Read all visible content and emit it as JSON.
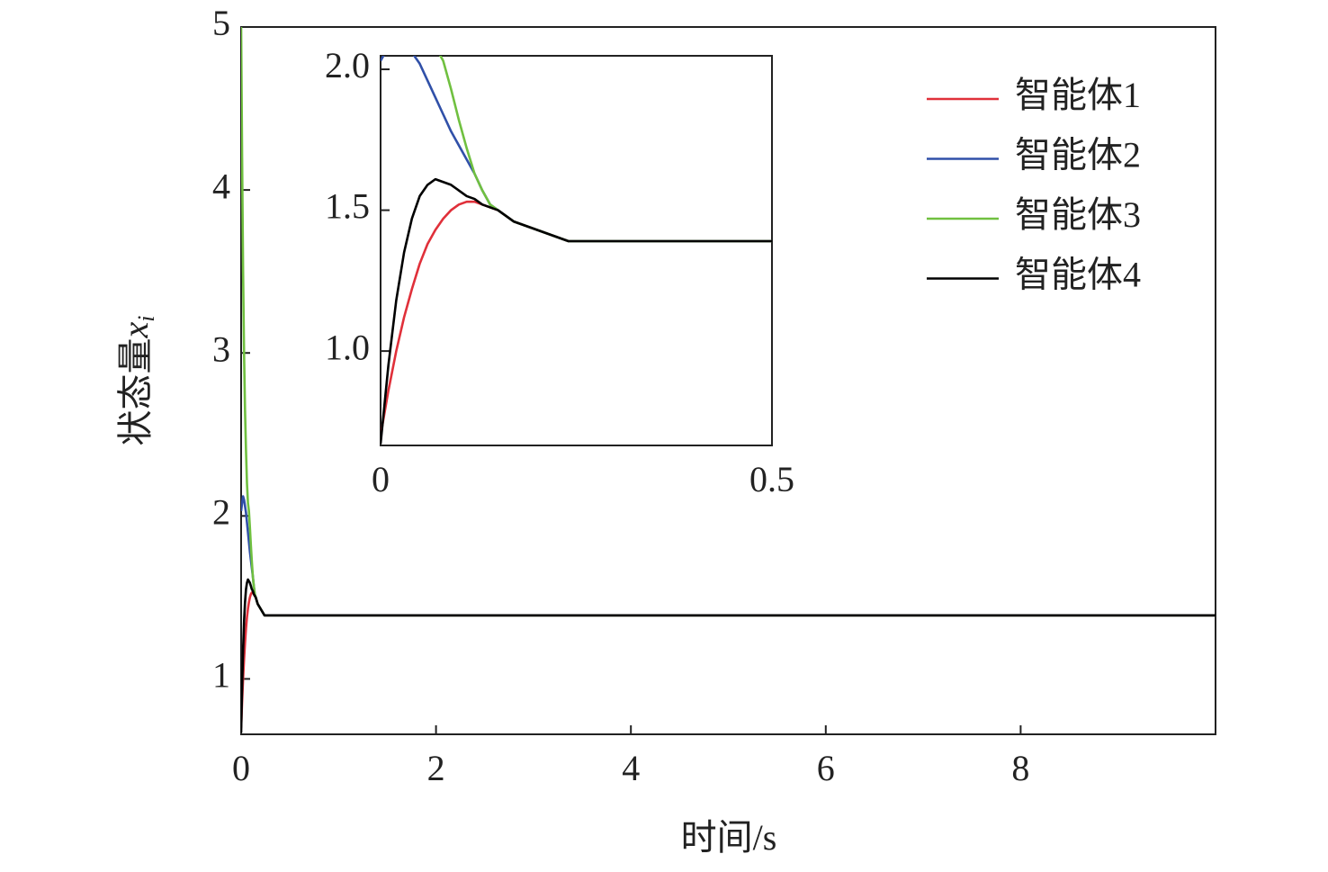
{
  "chart_data": {
    "type": "line",
    "xlabel": "时间/s",
    "ylabel": "状态量",
    "ylabel_var": "x",
    "ylabel_sub": "i",
    "x": [
      0,
      0.01,
      0.02,
      0.03,
      0.04,
      0.05,
      0.06,
      0.07,
      0.08,
      0.09,
      0.1,
      0.11,
      0.12,
      0.13,
      0.14,
      0.15,
      0.16,
      0.17,
      0.18,
      0.19,
      0.2,
      0.21,
      0.22,
      0.23,
      0.24,
      0.25,
      0.3,
      0.4,
      0.5,
      1,
      2,
      4,
      6,
      8,
      10
    ],
    "series": [
      {
        "name": "智能体1",
        "color": "#e0303a",
        "values": [
          0.7,
          0.86,
          1.0,
          1.12,
          1.22,
          1.31,
          1.38,
          1.43,
          1.47,
          1.5,
          1.52,
          1.53,
          1.53,
          1.52,
          1.51,
          1.5,
          1.48,
          1.46,
          1.45,
          1.44,
          1.43,
          1.42,
          1.41,
          1.4,
          1.39,
          1.39,
          1.39,
          1.39,
          1.39,
          1.39,
          1.39,
          1.39,
          1.39,
          1.39,
          1.39
        ]
      },
      {
        "name": "智能体2",
        "color": "#3050a8",
        "values": [
          2.03,
          2.08,
          2.12,
          2.1,
          2.06,
          2.02,
          1.96,
          1.9,
          1.84,
          1.78,
          1.73,
          1.68,
          1.63,
          1.57,
          1.52,
          1.5,
          1.48,
          1.46,
          1.45,
          1.44,
          1.43,
          1.42,
          1.41,
          1.4,
          1.39,
          1.39,
          1.39,
          1.39,
          1.39,
          1.39,
          1.39,
          1.39,
          1.39,
          1.39,
          1.39
        ]
      },
      {
        "name": "智能体3",
        "color": "#70c040",
        "values": [
          5.0,
          4.2,
          3.5,
          3.0,
          2.65,
          2.4,
          2.2,
          2.08,
          2.03,
          1.93,
          1.82,
          1.72,
          1.63,
          1.57,
          1.52,
          1.5,
          1.48,
          1.46,
          1.45,
          1.44,
          1.43,
          1.42,
          1.41,
          1.4,
          1.39,
          1.39,
          1.39,
          1.39,
          1.39,
          1.39,
          1.39,
          1.39,
          1.39,
          1.39,
          1.39
        ]
      },
      {
        "name": "智能体4",
        "color": "#000000",
        "values": [
          0.67,
          0.95,
          1.18,
          1.35,
          1.47,
          1.55,
          1.59,
          1.61,
          1.6,
          1.59,
          1.57,
          1.55,
          1.54,
          1.52,
          1.51,
          1.5,
          1.48,
          1.46,
          1.45,
          1.44,
          1.43,
          1.42,
          1.41,
          1.4,
          1.39,
          1.39,
          1.39,
          1.39,
          1.39,
          1.39,
          1.39,
          1.39,
          1.39,
          1.39,
          1.39
        ]
      }
    ],
    "xlim": [
      0,
      10
    ],
    "xticks": [
      0,
      2,
      4,
      6,
      8
    ],
    "ylim": [
      0.66,
      5
    ],
    "yticks": [
      1,
      2,
      3,
      4,
      5
    ],
    "legend": "upper right",
    "inset": {
      "xlim": [
        0,
        0.5
      ],
      "xticks": [
        0,
        0.5
      ],
      "ylim": [
        0.665,
        2.048
      ],
      "yticks": [
        {
          "value": 1.0,
          "label": "1.0"
        },
        {
          "value": 1.5,
          "label": "1.5"
        },
        {
          "value": 2.0,
          "label": "2.0"
        }
      ]
    }
  }
}
